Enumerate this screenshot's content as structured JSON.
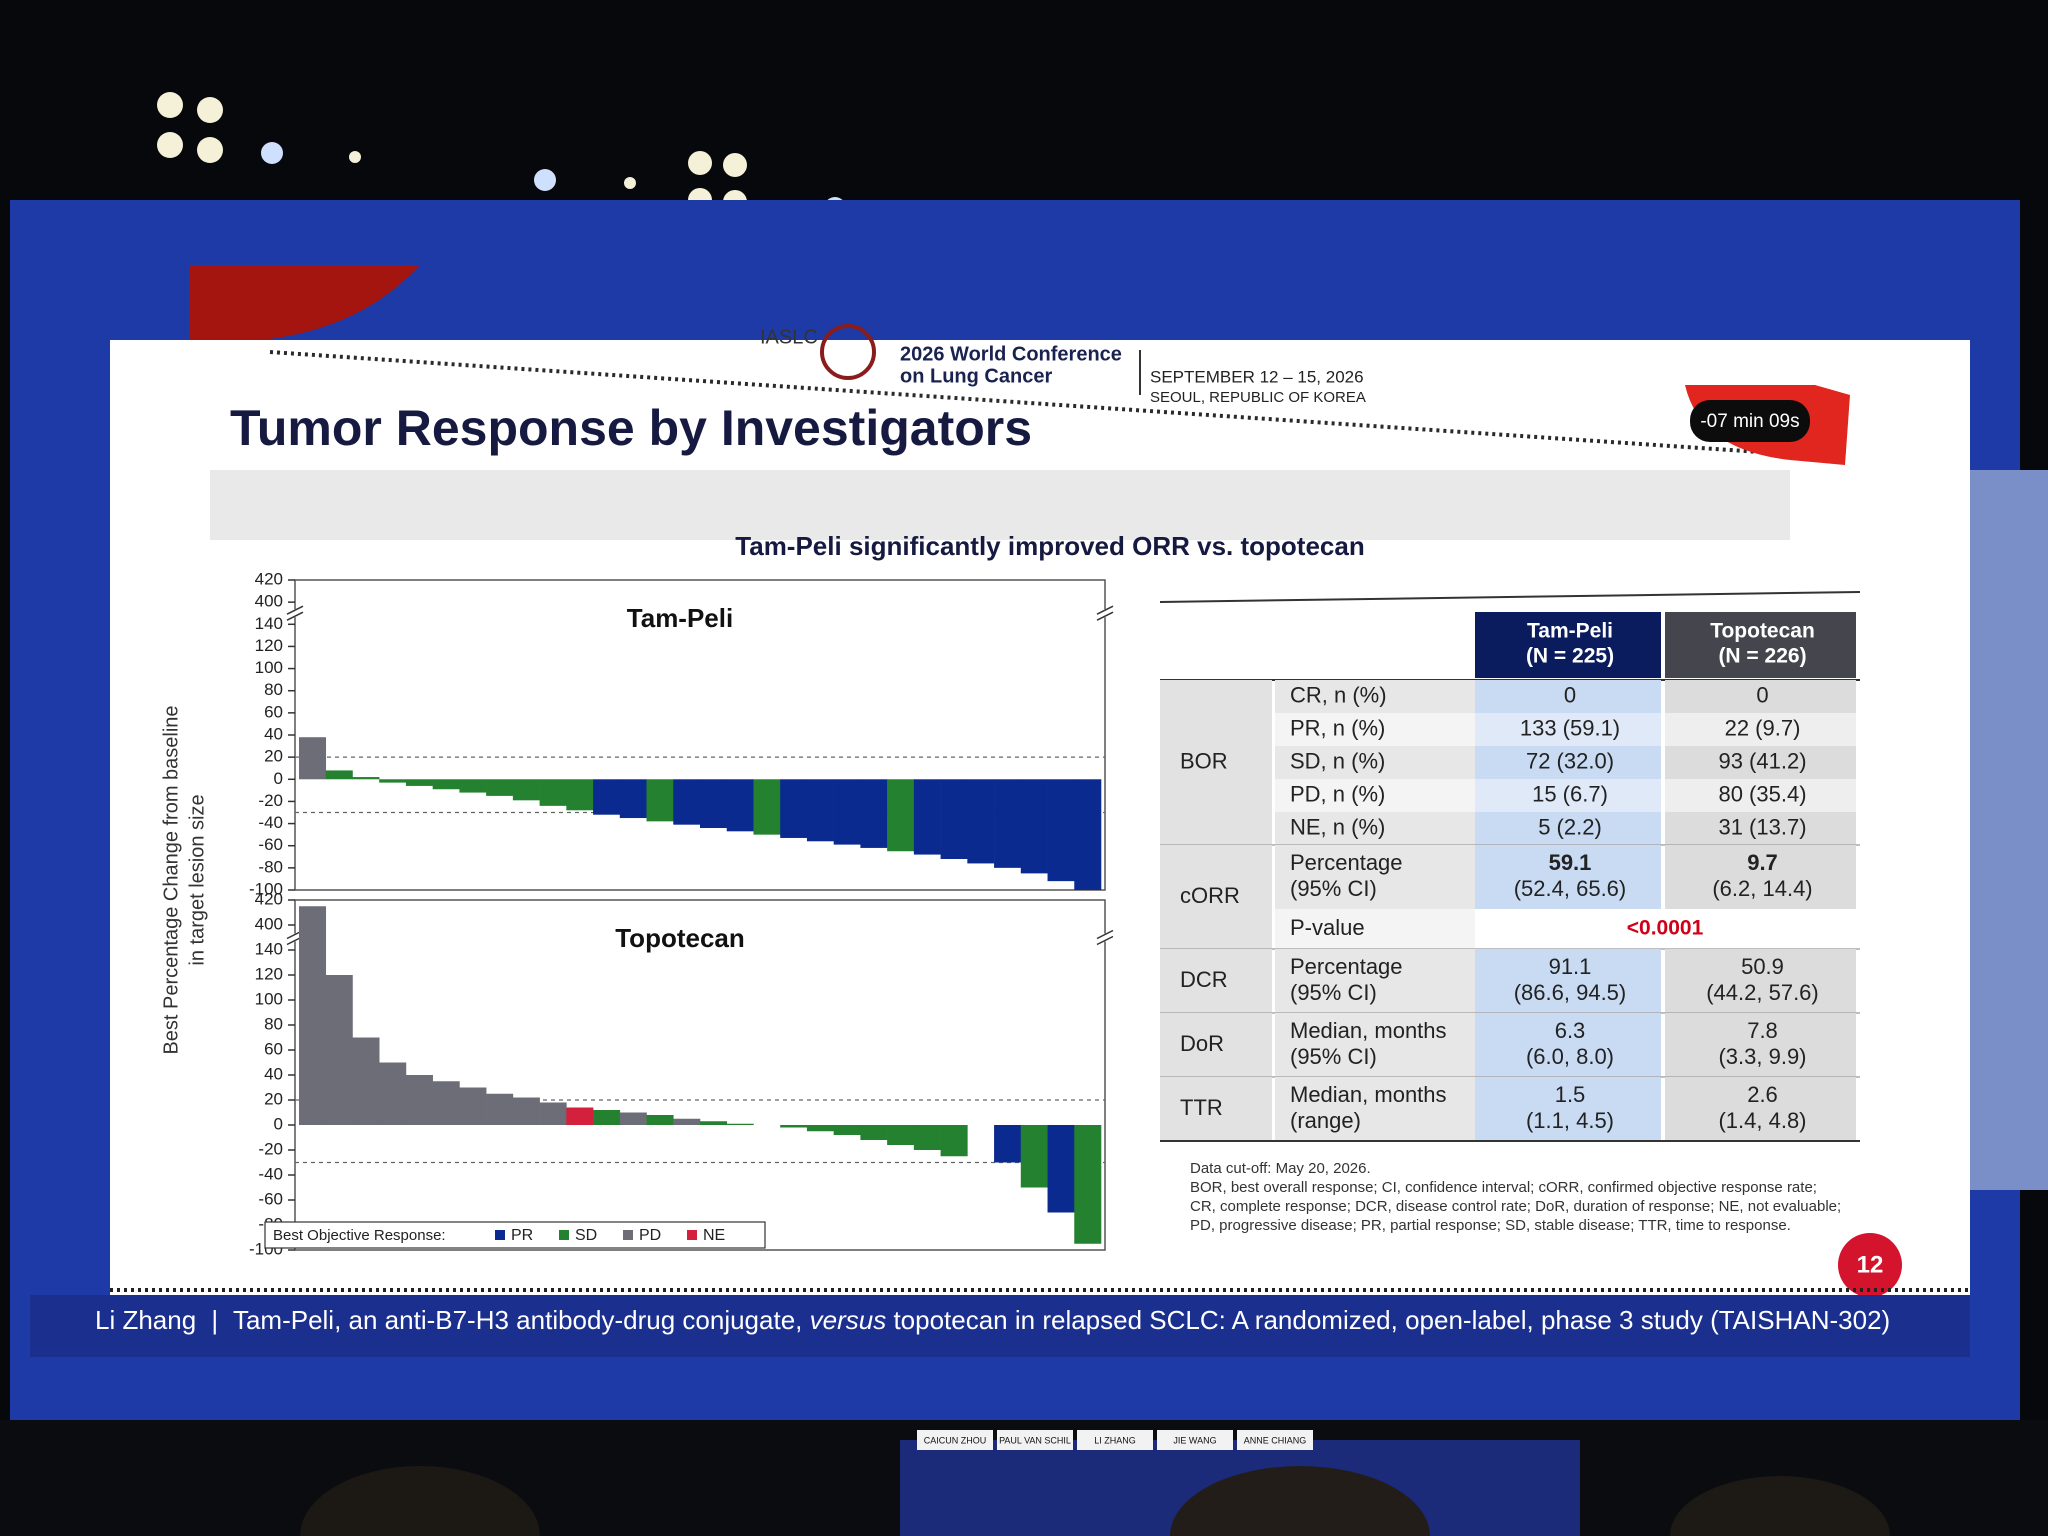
{
  "header": {
    "org": "IASLC",
    "conference": [
      "2026 World Conference",
      "on Lung Cancer"
    ],
    "dates": "SEPTEMBER 12 – 15, 2026",
    "location": "SEOUL, REPUBLIC OF KOREA"
  },
  "timer": "-07 min 09s",
  "slide": {
    "title": "Tumor Response by Investigators",
    "subtitle": "Tam-Peli significantly improved ORR vs. topotecan",
    "y_axis_label": [
      "Best Percentage Change from baseline",
      "in target lesion size"
    ],
    "legend_title": "Best Objective Response:",
    "page_number": "12"
  },
  "chart_data": [
    {
      "type": "bar",
      "title": "Tam-Peli",
      "categories": [
        null,
        null,
        null,
        null,
        null,
        null,
        null,
        null,
        null,
        null,
        null,
        null,
        null,
        null,
        null,
        null,
        null,
        null,
        null,
        null,
        null,
        null,
        null,
        null,
        null,
        null,
        null,
        null,
        null,
        null
      ],
      "series": [
        {
          "name": "PR",
          "color": "#0b2a8f",
          "values": [
            null,
            null,
            null,
            null,
            null,
            null,
            null,
            null,
            null,
            null,
            null,
            -32,
            -35,
            null,
            -41,
            -44,
            -47,
            null,
            -53,
            -56,
            -59,
            -62,
            null,
            -68,
            -72,
            -76,
            -80,
            -85,
            -92,
            -100
          ]
        },
        {
          "name": "SD",
          "color": "#23812f",
          "values": [
            null,
            8,
            2,
            -3,
            -6,
            -9,
            -12,
            -15,
            -19,
            -24,
            -28,
            null,
            null,
            -38,
            null,
            null,
            null,
            -50,
            null,
            null,
            null,
            null,
            -65,
            null,
            null,
            null,
            null,
            null,
            null,
            null
          ]
        },
        {
          "name": "PD",
          "color": "#6d6d78",
          "values": [
            38,
            null,
            null,
            null,
            null,
            null,
            null,
            null,
            null,
            null,
            null,
            null,
            null,
            null,
            null,
            null,
            null,
            null,
            null,
            null,
            null,
            null,
            null,
            null,
            null,
            null,
            null,
            null,
            null,
            null
          ]
        },
        {
          "name": "NE",
          "color": "#d3203c",
          "values": [
            null,
            null,
            null,
            null,
            null,
            null,
            null,
            null,
            null,
            null,
            null,
            null,
            null,
            null,
            null,
            null,
            null,
            null,
            null,
            null,
            null,
            null,
            null,
            null,
            null,
            null,
            null,
            null,
            null,
            null
          ]
        }
      ],
      "ylim": [
        -100,
        420
      ],
      "ybreak": [
        140,
        400
      ],
      "yticks": [
        -100,
        -80,
        -60,
        -40,
        -20,
        0,
        20,
        40,
        60,
        80,
        100,
        120,
        140,
        400,
        420
      ],
      "reference_lines": [
        20,
        -30
      ]
    },
    {
      "type": "bar",
      "title": "Topotecan",
      "categories": [
        null,
        null,
        null,
        null,
        null,
        null,
        null,
        null,
        null,
        null,
        null,
        null,
        null,
        null,
        null,
        null,
        null,
        null,
        null,
        null,
        null,
        null,
        null,
        null,
        null,
        null,
        null,
        null,
        null,
        null
      ],
      "series": [
        {
          "name": "PR",
          "color": "#0b2a8f",
          "values": [
            null,
            null,
            null,
            null,
            null,
            null,
            null,
            null,
            null,
            null,
            null,
            null,
            null,
            null,
            null,
            null,
            null,
            null,
            null,
            null,
            null,
            null,
            null,
            null,
            null,
            null,
            -30,
            null,
            -70,
            null
          ]
        },
        {
          "name": "SD",
          "color": "#23812f",
          "values": [
            null,
            null,
            null,
            null,
            null,
            null,
            null,
            null,
            null,
            null,
            null,
            12,
            null,
            8,
            null,
            3,
            1,
            0,
            -2,
            -5,
            -8,
            -12,
            -16,
            -20,
            -25,
            null,
            null,
            -50,
            null,
            -95
          ]
        },
        {
          "name": "PD",
          "color": "#6d6d78",
          "values": [
            415,
            120,
            70,
            50,
            40,
            35,
            30,
            25,
            22,
            18,
            null,
            null,
            10,
            null,
            5,
            null,
            null,
            null,
            null,
            null,
            null,
            null,
            null,
            null,
            null,
            null,
            null,
            null,
            null,
            null
          ]
        },
        {
          "name": "NE",
          "color": "#d3203c",
          "values": [
            null,
            null,
            null,
            null,
            null,
            null,
            null,
            null,
            null,
            null,
            14,
            null,
            null,
            null,
            null,
            null,
            null,
            null,
            null,
            null,
            null,
            null,
            null,
            null,
            null,
            null,
            null,
            null,
            null,
            null
          ]
        }
      ],
      "ylim": [
        -100,
        420
      ],
      "ybreak": [
        140,
        400
      ],
      "yticks": [
        -100,
        -80,
        -60,
        -40,
        -20,
        0,
        20,
        40,
        60,
        80,
        100,
        120,
        140,
        400,
        420
      ],
      "reference_lines": [
        20,
        -30
      ],
      "legend": "bottom-left"
    }
  ],
  "table": {
    "columns": [
      {
        "name": "Tam-Peli",
        "n": "(N = 225)",
        "color": "#0a1b5e"
      },
      {
        "name": "Topotecan",
        "n": "(N = 226)",
        "color": "#45464d"
      }
    ],
    "groups": [
      {
        "label": "BOR",
        "rows": [
          {
            "label": [
              "CR, n (%)"
            ],
            "values": [
              [
                "0"
              ],
              [
                "0"
              ]
            ]
          },
          {
            "label": [
              "PR, n (%)"
            ],
            "values": [
              [
                "133 (59.1)"
              ],
              [
                "22 (9.7)"
              ]
            ]
          },
          {
            "label": [
              "SD, n (%)"
            ],
            "values": [
              [
                "72 (32.0)"
              ],
              [
                "93 (41.2)"
              ]
            ]
          },
          {
            "label": [
              "PD, n (%)"
            ],
            "values": [
              [
                "15 (6.7)"
              ],
              [
                "80 (35.4)"
              ]
            ]
          },
          {
            "label": [
              "NE, n (%)"
            ],
            "values": [
              [
                "5 (2.2)"
              ],
              [
                "31 (13.7)"
              ]
            ]
          }
        ]
      },
      {
        "label": "cORR",
        "rows": [
          {
            "label": [
              "Percentage",
              "(95% CI)"
            ],
            "values": [
              [
                "59.1",
                "(52.4, 65.6)"
              ],
              [
                "9.7",
                "(6.2, 14.4)"
              ]
            ],
            "bold_first": true
          },
          {
            "label": [
              "P-value"
            ],
            "merged": "<0.0001"
          }
        ]
      },
      {
        "label": "DCR",
        "rows": [
          {
            "label": [
              "Percentage",
              "(95% CI)"
            ],
            "values": [
              [
                "91.1",
                "(86.6, 94.5)"
              ],
              [
                "50.9",
                "(44.2, 57.6)"
              ]
            ]
          }
        ]
      },
      {
        "label": "DoR",
        "rows": [
          {
            "label": [
              "Median, months",
              "(95% CI)"
            ],
            "values": [
              [
                "6.3",
                "(6.0, 8.0)"
              ],
              [
                "7.8",
                "(3.3, 9.9)"
              ]
            ]
          }
        ]
      },
      {
        "label": "TTR",
        "rows": [
          {
            "label": [
              "Median, months",
              "(range)"
            ],
            "values": [
              [
                "1.5",
                "(1.1, 4.5)"
              ],
              [
                "2.6",
                "(1.4, 4.8)"
              ]
            ]
          }
        ]
      }
    ]
  },
  "notes": [
    "Data cut-off: May 20, 2026.",
    "BOR, best overall response; CI, confidence interval; cORR, confirmed objective response rate;",
    "CR, complete response; DCR, disease control rate; DoR, duration of response; NE, not evaluable;",
    "PD, progressive disease; PR, partial response; SD, stable disease; TTR, time to response."
  ],
  "footer": {
    "speaker": "Li Zhang",
    "separator": "|",
    "title_before": "Tam-Peli, an anti-B7-H3 antibody-drug conjugate,",
    "title_italic": "versus",
    "title_after": "topotecan in relapsed SCLC: A randomized, open-label, phase 3 study (TAISHAN-302)"
  },
  "stage": {
    "name_cards": [
      "CAICUN ZHOU",
      "PAUL VAN SCHIL",
      "LI ZHANG",
      "JIE WANG",
      "ANNE CHIANG"
    ]
  }
}
